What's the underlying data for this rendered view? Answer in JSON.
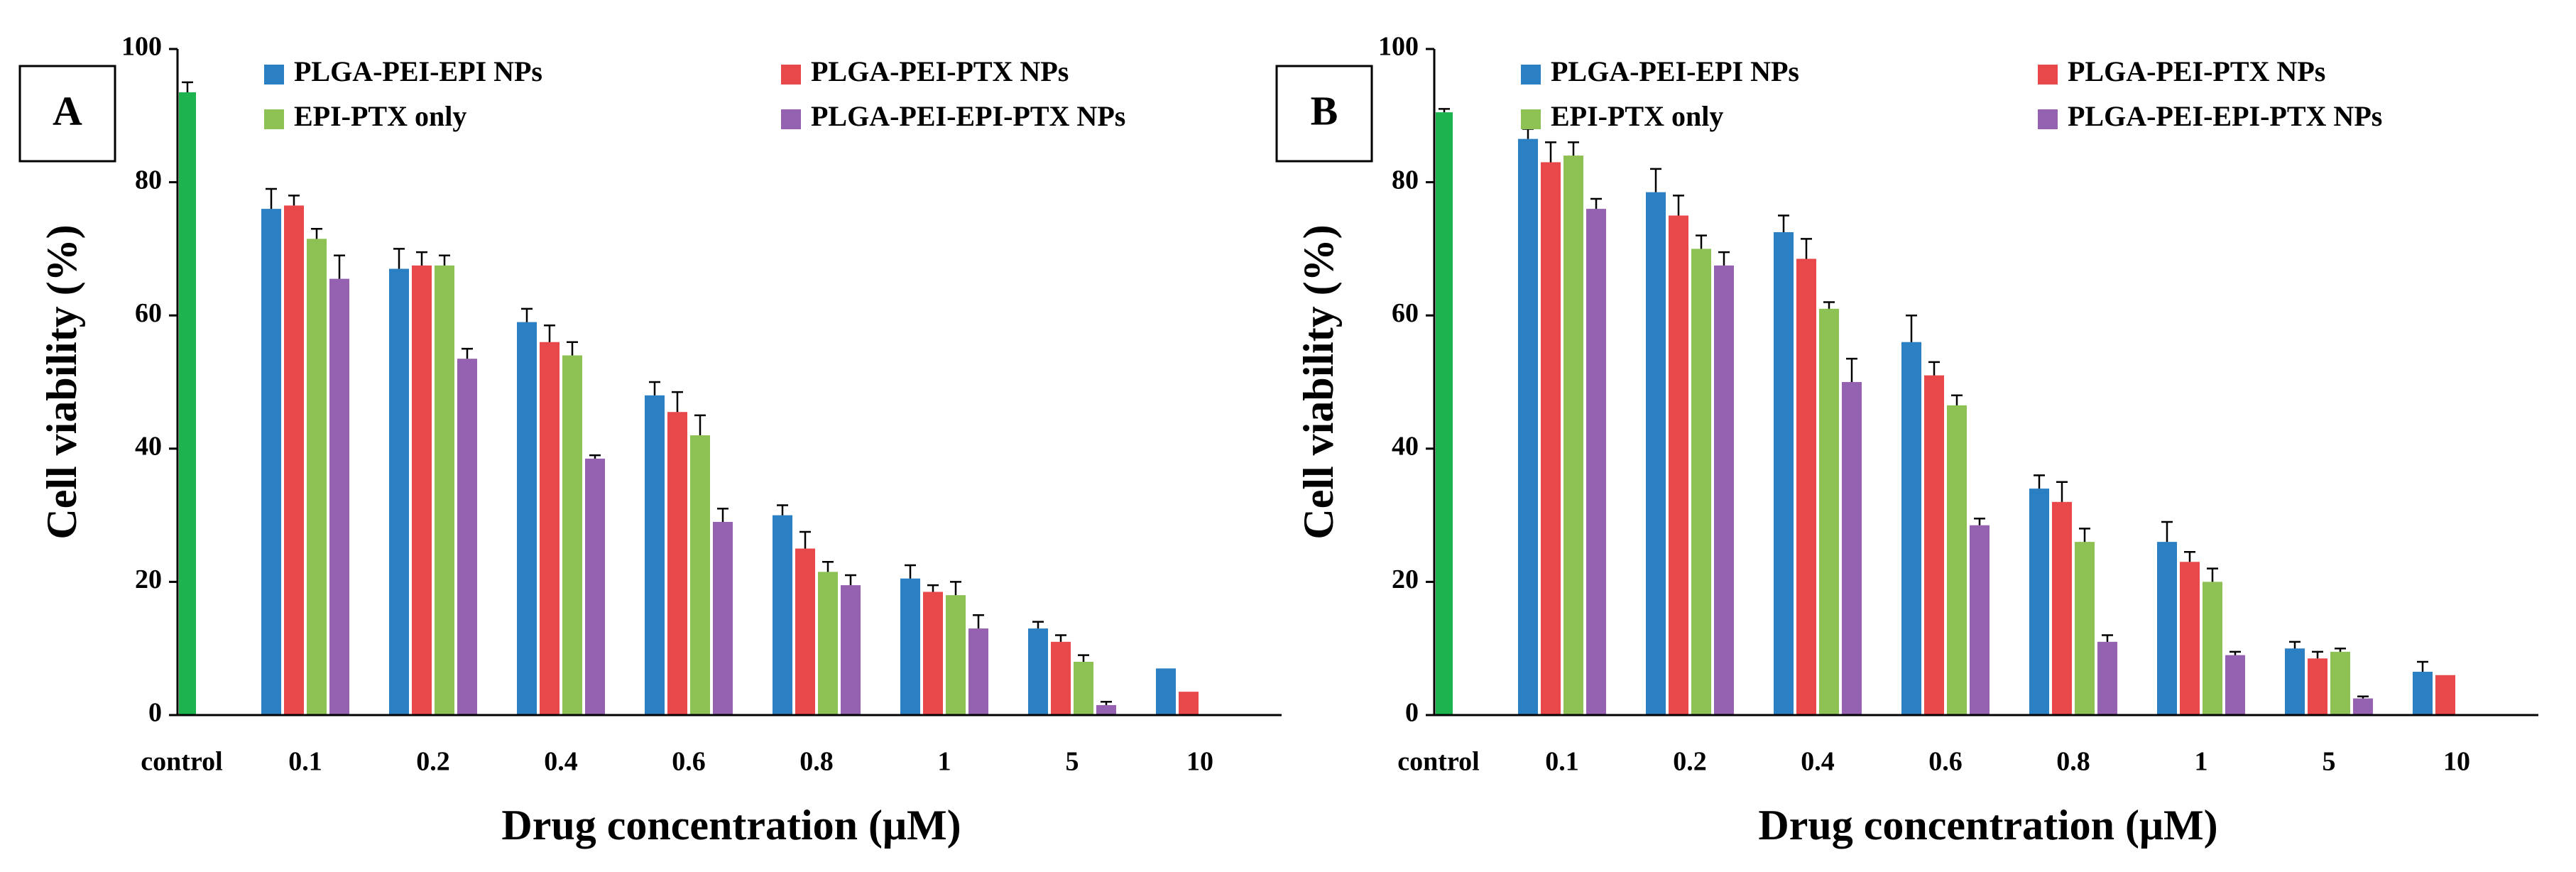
{
  "chart_data": [
    {
      "type": "bar",
      "panel_label": "A",
      "ylabel": "Cell viability (%)",
      "xlabel": "Drug concentration (μM)",
      "categories": [
        "control",
        "0.1",
        "0.2",
        "0.4",
        "0.6",
        "0.8",
        "1",
        "5",
        "10"
      ],
      "control": {
        "value": 93.5,
        "error": 1.5,
        "color": "#1db34f"
      },
      "series": [
        {
          "name": "PLGA-PEI-EPI NPs",
          "color": "#2b7fc3",
          "values": [
            null,
            76,
            67,
            59,
            48,
            30,
            20.5,
            13,
            7
          ],
          "errors": [
            null,
            3,
            3,
            2,
            2,
            1.5,
            2,
            1,
            0
          ]
        },
        {
          "name": "PLGA-PEI-PTX NPs",
          "color": "#e8484a",
          "values": [
            null,
            76.5,
            67.5,
            56,
            45.5,
            25,
            18.5,
            11,
            3.5
          ],
          "errors": [
            null,
            1.5,
            2,
            2.5,
            3,
            2.5,
            1,
            1,
            0
          ]
        },
        {
          "name": "EPI-PTX only",
          "color": "#8dc153",
          "values": [
            null,
            71.5,
            67.5,
            54,
            42,
            21.5,
            18,
            8,
            null
          ],
          "errors": [
            null,
            1.5,
            1.5,
            2,
            3,
            1.5,
            2,
            1,
            null
          ]
        },
        {
          "name": "PLGA-PEI-EPI-PTX NPs",
          "color": "#9462b0",
          "values": [
            null,
            65.5,
            53.5,
            38.5,
            29,
            19.5,
            13,
            1.5,
            null
          ],
          "errors": [
            null,
            3.5,
            1.5,
            0.5,
            2,
            1.5,
            2,
            0.5,
            null
          ]
        }
      ],
      "ylim": [
        0,
        100
      ],
      "yticks": [
        0,
        20,
        40,
        60,
        80,
        100
      ]
    },
    {
      "type": "bar",
      "panel_label": "B",
      "ylabel": "Cell viability (%)",
      "xlabel": "Drug concentration (μM)",
      "categories": [
        "control",
        "0.1",
        "0.2",
        "0.4",
        "0.6",
        "0.8",
        "1",
        "5",
        "10"
      ],
      "control": {
        "value": 90.5,
        "error": 0.5,
        "color": "#1db34f"
      },
      "series": [
        {
          "name": "PLGA-PEI-EPI NPs",
          "color": "#2b7fc3",
          "values": [
            null,
            86.5,
            78.5,
            72.5,
            56,
            34,
            26,
            10,
            6.5
          ],
          "errors": [
            null,
            1.5,
            3.5,
            2.5,
            4,
            2,
            3,
            1,
            1.5
          ]
        },
        {
          "name": "PLGA-PEI-PTX NPs",
          "color": "#e8484a",
          "values": [
            null,
            83,
            75,
            68.5,
            51,
            32,
            23,
            8.5,
            6
          ],
          "errors": [
            null,
            3,
            3,
            3,
            2,
            3,
            1.5,
            1,
            0
          ]
        },
        {
          "name": "EPI-PTX only",
          "color": "#8dc153",
          "values": [
            null,
            84,
            70,
            61,
            46.5,
            26,
            20,
            9.5,
            null
          ],
          "errors": [
            null,
            2,
            2,
            1,
            1.5,
            2,
            2,
            0.5,
            null
          ]
        },
        {
          "name": "PLGA-PEI-EPI-PTX NPs",
          "color": "#9462b0",
          "values": [
            null,
            76,
            67.5,
            50,
            28.5,
            11,
            9,
            2.5,
            null
          ],
          "errors": [
            null,
            1.5,
            2,
            3.5,
            1,
            1,
            0.5,
            0.3,
            null
          ]
        }
      ],
      "ylim": [
        0,
        100
      ],
      "yticks": [
        0,
        20,
        40,
        60,
        80,
        100
      ]
    }
  ]
}
